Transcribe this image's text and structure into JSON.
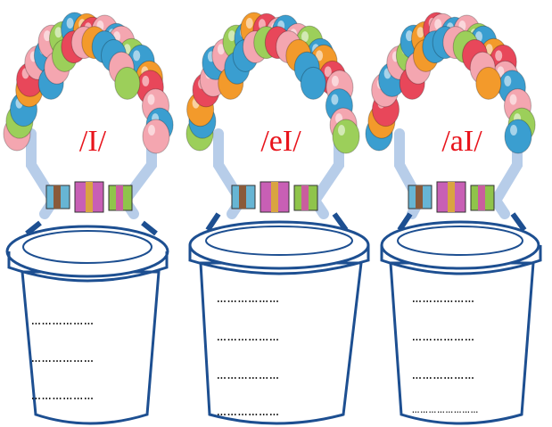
{
  "baskets": [
    {
      "phoneme": "/I/",
      "lines": [
        "………………",
        "………………",
        "………………"
      ]
    },
    {
      "phoneme": "/eI/",
      "lines": [
        "………………",
        "………………",
        "………………",
        "………………"
      ]
    },
    {
      "phoneme": "/aI/",
      "lines": [
        "………………",
        "………………",
        "………………",
        "……………………"
      ]
    }
  ],
  "colors": {
    "basket_outline": "#1d4f91",
    "basket_fill": "#ffffff",
    "handle": "#b7cde9",
    "phoneme_text": "#e8141c",
    "balloon_pink": "#f4a6b0",
    "balloon_green": "#9ccf5a",
    "balloon_blue": "#3a9ed0",
    "balloon_orange": "#f39a2b",
    "balloon_red": "#e8475a"
  },
  "icons": [
    "balloon-arch",
    "gift-box",
    "bucket"
  ]
}
